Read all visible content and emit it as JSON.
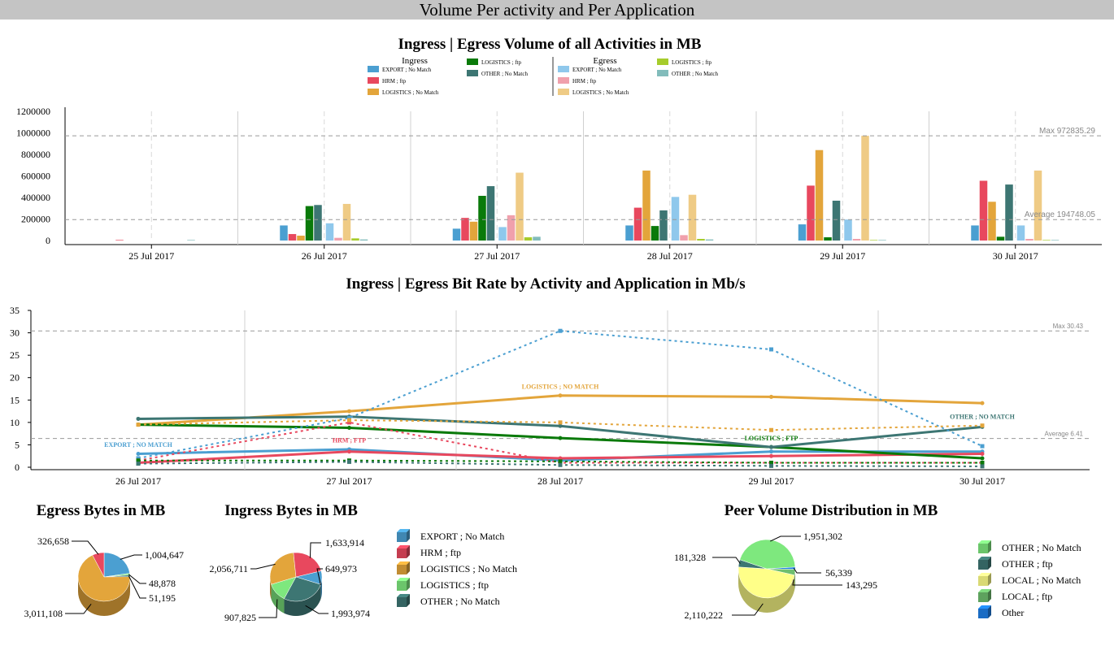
{
  "page_title": "Volume Per activity and Per Application",
  "palette": {
    "export": "#4b9fd1",
    "hrm": "#e8485e",
    "logistics_nomatch": "#e3a53b",
    "logistics_ftp": "#0a7a0a",
    "other_nomatch": "#3d7673",
    "export_egress": "#8fc8ec",
    "hrm_egress": "#f0a0ac",
    "logistics_nomatch_egress": "#efcb85",
    "logistics_ftp_egress": "#a6cc2c",
    "other_nomatch_egress": "#82bcbb",
    "peer_other_nomatch": "#7ee87e",
    "peer_other_ftp": "#3d7673",
    "peer_local_nomatch": "#ffff88",
    "peer_local_ftp": "#6fbf6f",
    "peer_other": "#1e7fe6",
    "ref_line": "#999999"
  },
  "chart_data": [
    {
      "id": "volume",
      "type": "bar",
      "title": "Ingress | Egress Volume of all Activities in MB",
      "legend_groups": [
        {
          "title": "Ingress",
          "entries": [
            {
              "name": "EXPORT ; No Match",
              "color_key": "export"
            },
            {
              "name": "HRM ; ftp",
              "color_key": "hrm"
            },
            {
              "name": "LOGISTICS ; No Match",
              "color_key": "logistics_nomatch"
            },
            {
              "name": "LOGISTICS ; ftp",
              "color_key": "logistics_ftp"
            },
            {
              "name": "OTHER ; No Match",
              "color_key": "other_nomatch"
            }
          ]
        },
        {
          "title": "Egress",
          "entries": [
            {
              "name": "EXPORT ; No Match",
              "color_key": "export_egress"
            },
            {
              "name": "HRM ; ftp",
              "color_key": "hrm_egress"
            },
            {
              "name": "LOGISTICS ; No Match",
              "color_key": "logistics_nomatch_egress"
            },
            {
              "name": "LOGISTICS ; ftp",
              "color_key": "logistics_ftp_egress"
            },
            {
              "name": "OTHER ; No Match",
              "color_key": "other_nomatch_egress"
            }
          ]
        }
      ],
      "categories": [
        "25 Jul 2017",
        "26 Jul 2017",
        "27 Jul 2017",
        "28 Jul 2017",
        "29 Jul 2017",
        "30 Jul 2017"
      ],
      "yticks": [
        "0",
        "200000",
        "400000",
        "600000",
        "800000",
        "1000000",
        "1200000"
      ],
      "ylim": [
        0,
        1200000
      ],
      "series": [
        {
          "name": "EXPORT ; No Match",
          "group": "Ingress",
          "color_key": "export",
          "values": [
            0,
            140000,
            110000,
            140000,
            150000,
            140000
          ]
        },
        {
          "name": "HRM ; ftp",
          "group": "Ingress",
          "color_key": "hrm",
          "values": [
            5000,
            60000,
            210000,
            305000,
            510000,
            555000
          ]
        },
        {
          "name": "LOGISTICS ; No Match",
          "group": "Ingress",
          "color_key": "logistics_nomatch",
          "values": [
            0,
            45000,
            175000,
            650000,
            840000,
            360000
          ]
        },
        {
          "name": "LOGISTICS ; ftp",
          "group": "Ingress",
          "color_key": "logistics_ftp",
          "values": [
            0,
            320000,
            415000,
            135000,
            30000,
            35000
          ]
        },
        {
          "name": "OTHER ; No Match",
          "group": "Ingress",
          "color_key": "other_nomatch",
          "values": [
            0,
            330000,
            505000,
            280000,
            370000,
            520000
          ]
        },
        {
          "name": "EXPORT ; No Match",
          "group": "Egress",
          "color_key": "export_egress",
          "values": [
            0,
            160000,
            125000,
            405000,
            195000,
            140000
          ]
        },
        {
          "name": "HRM ; ftp",
          "group": "Egress",
          "color_key": "hrm_egress",
          "values": [
            0,
            25000,
            235000,
            50000,
            15000,
            15000
          ]
        },
        {
          "name": "LOGISTICS ; No Match",
          "group": "Egress",
          "color_key": "logistics_nomatch_egress",
          "values": [
            0,
            340000,
            630000,
            425000,
            972835,
            650000
          ]
        },
        {
          "name": "LOGISTICS ; ftp",
          "group": "Egress",
          "color_key": "logistics_ftp_egress",
          "values": [
            0,
            20000,
            30000,
            15000,
            5000,
            5000
          ]
        },
        {
          "name": "OTHER ; No Match",
          "group": "Egress",
          "color_key": "other_nomatch_egress",
          "values": [
            5000,
            10000,
            35000,
            10000,
            5000,
            5000
          ]
        }
      ],
      "reference_lines": [
        {
          "label": "Max 972835.29",
          "value": 972835.29
        },
        {
          "label": "Average 194748.05",
          "value": 194748.05
        }
      ]
    },
    {
      "id": "bitrate",
      "type": "line",
      "title": "Ingress | Egress Bit Rate by Activity and Application in Mb/s",
      "categories": [
        "26 Jul 2017",
        "27 Jul 2017",
        "28 Jul 2017",
        "29 Jul 2017",
        "30 Jul 2017"
      ],
      "yticks": [
        "0",
        "5",
        "10",
        "15",
        "20",
        "25",
        "30",
        "35"
      ],
      "ylim": [
        0,
        35
      ],
      "series": [
        {
          "name": "EXPORT ; No Match",
          "color_key": "export",
          "style": "solid",
          "values": [
            3,
            4,
            1.5,
            3.5,
            3.5
          ]
        },
        {
          "name": "HRM ; ftp",
          "color_key": "hrm",
          "style": "solid",
          "values": [
            1,
            3.5,
            2,
            2.5,
            3
          ]
        },
        {
          "name": "LOGISTICS ; No Match",
          "color_key": "logistics_nomatch",
          "style": "solid",
          "values": [
            9.5,
            12.5,
            16,
            15.7,
            14.3
          ]
        },
        {
          "name": "LOGISTICS ; ftp",
          "color_key": "logistics_ftp",
          "style": "solid",
          "values": [
            9.5,
            8.8,
            6.5,
            4.5,
            2
          ]
        },
        {
          "name": "OTHER ; No Match",
          "color_key": "other_nomatch",
          "style": "solid",
          "values": [
            10.8,
            11.3,
            9.2,
            4.5,
            9
          ]
        },
        {
          "name": "EXPORT ; No Match",
          "color_key": "export",
          "style": "dashed",
          "values": [
            2,
            11,
            30.43,
            26.3,
            4.7
          ]
        },
        {
          "name": "HRM ; ftp",
          "color_key": "hrm",
          "style": "dashed",
          "values": [
            1.5,
            10,
            1,
            1,
            1
          ]
        },
        {
          "name": "LOGISTICS ; No Match",
          "color_key": "logistics_nomatch",
          "style": "dashed",
          "values": [
            9.5,
            10.5,
            10,
            8.3,
            9.3
          ]
        },
        {
          "name": "LOGISTICS ; ftp",
          "color_key": "logistics_ftp",
          "style": "dashed",
          "values": [
            1.5,
            1.5,
            1.3,
            1,
            1
          ]
        },
        {
          "name": "OTHER ; No Match",
          "color_key": "other_nomatch",
          "style": "dashed",
          "values": [
            0.8,
            1.2,
            0.5,
            0.3,
            0.2
          ]
        }
      ],
      "annotations": [
        {
          "text": "LOGISTICS ; NO MATCH",
          "color_key": "logistics_nomatch",
          "x_index": 2,
          "y": 17.5
        },
        {
          "text": "EXPORT ; NO MATCH",
          "color_key": "export",
          "x_index": 0,
          "y": 4.5
        },
        {
          "text": "HRM ; FTP",
          "color_key": "hrm",
          "x_index": 1,
          "y": 5.5
        },
        {
          "text": "LOGISTICS ; FTP",
          "color_key": "logistics_ftp",
          "x_index": 3,
          "y": 6
        },
        {
          "text": "OTHER ; NO MATCH",
          "color_key": "other_nomatch",
          "x_index": 4,
          "y": 10.8
        }
      ],
      "reference_lines": [
        {
          "label": "Max 30.43",
          "value": 30.43
        },
        {
          "label": "Average 6.41",
          "value": 6.41
        }
      ]
    },
    {
      "id": "egress_pie",
      "type": "pie",
      "title": "Egress Bytes in MB",
      "slices": [
        {
          "name": "EXPORT ; No Match",
          "value": 1004647,
          "label": "1,004,647",
          "color_key": "export"
        },
        {
          "name": "LOGISTICS ; ftp",
          "value": 48878,
          "label": "48,878",
          "color_key": "peer_other_nomatch"
        },
        {
          "name": "OTHER ; No Match",
          "value": 51195,
          "label": "51,195",
          "color_key": "other_nomatch"
        },
        {
          "name": "LOGISTICS ; No Match",
          "value": 3011108,
          "label": "3,011,108",
          "color_key": "logistics_nomatch"
        },
        {
          "name": "HRM ; ftp",
          "value": 326658,
          "label": "326,658",
          "color_key": "hrm"
        }
      ]
    },
    {
      "id": "ingress_pie",
      "type": "pie",
      "title": "Ingress Bytes in MB",
      "slices": [
        {
          "name": "EXPORT ; No Match",
          "value": 649973,
          "label": "649,973",
          "color_key": "export"
        },
        {
          "name": "OTHER ; No Match",
          "value": 1993974,
          "label": "1,993,974",
          "color_key": "other_nomatch"
        },
        {
          "name": "LOGISTICS ; ftp",
          "value": 907825,
          "label": "907,825",
          "color_key": "peer_other_nomatch"
        },
        {
          "name": "LOGISTICS ; No Match",
          "value": 2056711,
          "label": "2,056,711",
          "color_key": "logistics_nomatch"
        },
        {
          "name": "HRM ; ftp",
          "value": 1633914,
          "label": "1,633,914",
          "color_key": "hrm"
        }
      ],
      "legend": [
        {
          "name": "EXPORT ; No Match",
          "color_key": "export"
        },
        {
          "name": "HRM ; ftp",
          "color_key": "hrm"
        },
        {
          "name": "LOGISTICS ; No Match",
          "color_key": "logistics_nomatch"
        },
        {
          "name": "LOGISTICS ; ftp",
          "color_key": "peer_other_nomatch"
        },
        {
          "name": "OTHER ; No Match",
          "color_key": "other_nomatch"
        }
      ]
    },
    {
      "id": "peer_pie",
      "type": "pie",
      "title": "Peer Volume Distribution in MB",
      "slices": [
        {
          "name": "Other",
          "value": 56339,
          "label": "56,339",
          "color_key": "peer_other"
        },
        {
          "name": "LOCAL ; ftp",
          "value": 143295,
          "label": "143,295",
          "color_key": "peer_local_ftp"
        },
        {
          "name": "LOCAL ; No Match",
          "value": 2110222,
          "label": "2,110,222",
          "color_key": "peer_local_nomatch"
        },
        {
          "name": "OTHER ; ftp",
          "value": 181328,
          "label": "181,328",
          "color_key": "peer_other_ftp"
        },
        {
          "name": "OTHER ; No Match",
          "value": 1951302,
          "label": "1,951,302",
          "color_key": "peer_other_nomatch"
        }
      ],
      "legend": [
        {
          "name": "OTHER ; No Match",
          "color_key": "peer_other_nomatch"
        },
        {
          "name": "OTHER ; ftp",
          "color_key": "peer_other_ftp"
        },
        {
          "name": "LOCAL ; No Match",
          "color_key": "peer_local_nomatch"
        },
        {
          "name": "LOCAL ; ftp",
          "color_key": "peer_local_ftp"
        },
        {
          "name": "Other",
          "color_key": "peer_other"
        }
      ]
    }
  ]
}
